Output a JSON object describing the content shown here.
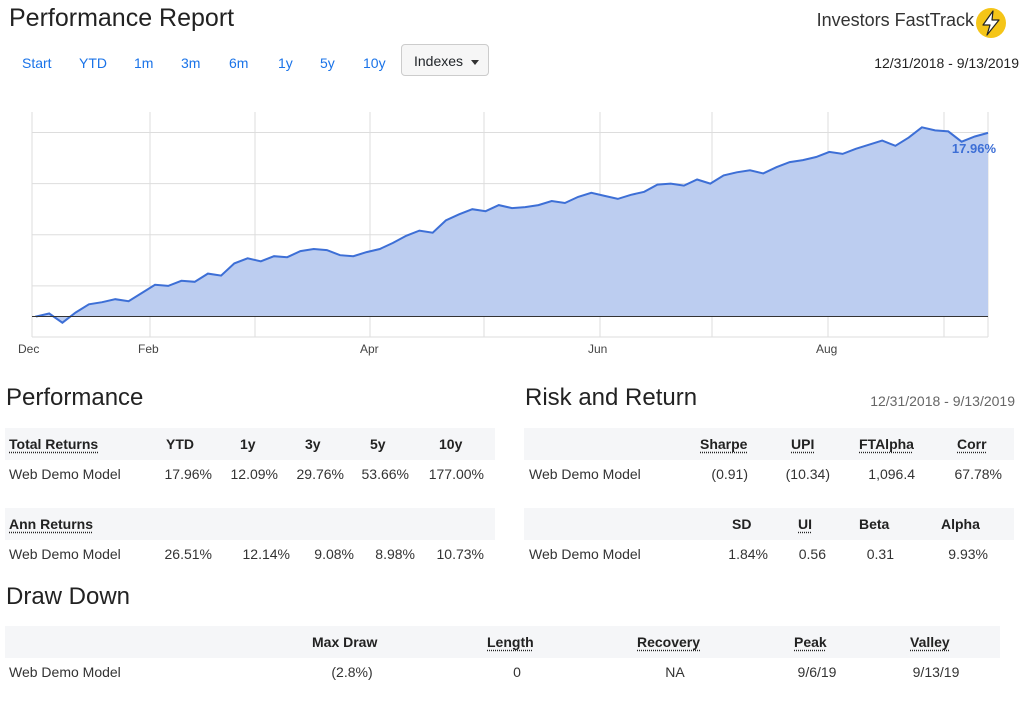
{
  "header": {
    "title": "Performance Report",
    "brand": "Investors FastTrack",
    "brand_icon": "lightning-bolt-icon",
    "brand_color": "#f5c518"
  },
  "nav": {
    "links": [
      "Start",
      "YTD",
      "1m",
      "3m",
      "6m",
      "1y",
      "5y",
      "10y"
    ],
    "dropdown_label": "Indexes",
    "date_range": "12/31/2018 - 9/13/2019"
  },
  "chart_data": {
    "type": "area",
    "x_tick_labels": [
      "Dec",
      "Feb",
      "Apr",
      "Jun",
      "Aug"
    ],
    "end_label": "17.96%",
    "series_color": "#3d6fd6",
    "fill_color": "#bccdf0",
    "values": [
      0.0,
      0.3,
      -0.6,
      0.4,
      1.2,
      1.4,
      1.7,
      1.5,
      2.3,
      3.1,
      3.0,
      3.5,
      3.4,
      4.2,
      4.0,
      5.2,
      5.7,
      5.4,
      5.9,
      5.8,
      6.4,
      6.6,
      6.5,
      6.0,
      5.9,
      6.3,
      6.6,
      7.2,
      7.9,
      8.4,
      8.2,
      9.4,
      10.0,
      10.5,
      10.3,
      10.9,
      10.6,
      10.7,
      10.9,
      11.3,
      11.1,
      11.7,
      12.1,
      11.8,
      11.5,
      11.9,
      12.2,
      12.9,
      13.0,
      12.8,
      13.4,
      13.0,
      13.8,
      14.1,
      14.3,
      14.0,
      14.6,
      15.1,
      15.3,
      15.6,
      16.1,
      15.9,
      16.4,
      16.8,
      17.2,
      16.7,
      17.5,
      18.5,
      18.2,
      18.1,
      17.1,
      17.6,
      17.96
    ],
    "ylim": [
      -2,
      20
    ],
    "grid": true
  },
  "performance": {
    "heading": "Performance",
    "total_returns": {
      "header": "Total Returns",
      "columns": [
        "YTD",
        "1y",
        "3y",
        "5y",
        "10y"
      ],
      "row_label": "Web Demo Model",
      "values": [
        "17.96%",
        "12.09%",
        "29.76%",
        "53.66%",
        "177.00%"
      ]
    },
    "ann_returns": {
      "header": "Ann Returns",
      "row_label": "Web Demo Model",
      "values": [
        "26.51%",
        "12.14%",
        "9.08%",
        "8.98%",
        "10.73%"
      ]
    }
  },
  "risk": {
    "heading": "Risk and Return",
    "date_range": "12/31/2018 - 9/13/2019",
    "table1": {
      "columns": [
        "Sharpe",
        "UPI",
        "FTAlpha",
        "Corr"
      ],
      "row_label": "Web Demo Model",
      "values": [
        "(0.91)",
        "(10.34)",
        "1,096.4",
        "67.78%"
      ]
    },
    "table2": {
      "columns": [
        "SD",
        "UI",
        "Beta",
        "Alpha"
      ],
      "row_label": "Web Demo Model",
      "values": [
        "1.84%",
        "0.56",
        "0.31",
        "9.93%"
      ]
    }
  },
  "drawdown": {
    "heading": "Draw Down",
    "columns": [
      "Max Draw",
      "Length",
      "Recovery",
      "Peak",
      "Valley"
    ],
    "row_label": "Web Demo Model",
    "values": [
      "(2.8%)",
      "0",
      "NA",
      "9/6/19",
      "9/13/19"
    ]
  }
}
